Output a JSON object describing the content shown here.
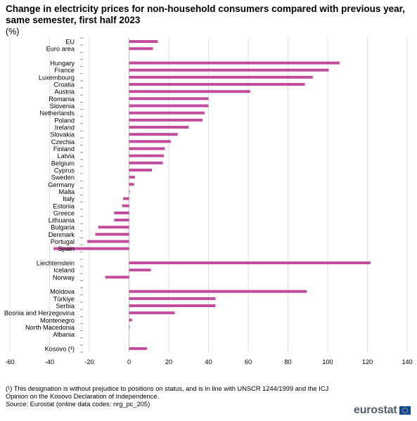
{
  "title": "Change in electricity prices for non-household consumers compared with previous year, same semester, first half 2023",
  "subtitle": "(%)",
  "footnote": "(¹) This designation is without prejudice to positions on status, and is in line with UNSCR 1244/1999 and the ICJ Opinion on the Kosovo Declaration of Independence.",
  "source_label": "Source:",
  "source_text": " Eurostat (online data codes: nrg_pc_205)",
  "logo_text": "eurostat",
  "colors": {
    "bar": "#c24c9c",
    "grid": "#dddddd",
    "flag_blue": "#0e47a1",
    "flag_star": "#ffd617"
  },
  "chart_data": {
    "type": "bar",
    "orientation": "horizontal",
    "title": "Change in electricity prices for non-household consumers compared with previous year, same semester, first half 2023",
    "unit": "(%)",
    "xlim": [
      -60,
      140
    ],
    "xticks": [
      -60,
      -40,
      -20,
      0,
      20,
      40,
      60,
      80,
      100,
      120,
      140
    ],
    "grid": true,
    "legend": "none",
    "categories": [
      "EU",
      "Euro area",
      "",
      "Hungary",
      "France",
      "Luxembourg",
      "Croatia",
      "Austria",
      "Romania",
      "Slovenia",
      "Netherlands",
      "Poland",
      "Ireland",
      "Slovakia",
      "Czechia",
      "Finland",
      "Latvia",
      "Belgium",
      "Cyprus",
      "Sweden",
      "Germany",
      "Malta",
      "Italy",
      "Estonia",
      "Greece",
      "Lithuania",
      "Bulgaria",
      "Denmark",
      "Portugal",
      "Spain",
      "",
      "Liechtenstein",
      "Iceland",
      "Norway",
      "",
      "Moldova",
      "Türkiye",
      "Serbia",
      "Bosnia and Herzegovina",
      "Montenegro",
      "North Macedonia",
      "Albania",
      "",
      "Kosovo (¹)"
    ],
    "values": [
      14.5,
      12,
      null,
      106,
      100.5,
      92.5,
      88.5,
      61,
      40,
      40,
      38,
      37,
      30,
      24.5,
      21,
      18,
      17.5,
      17,
      11.5,
      3,
      2.5,
      0.3,
      -3,
      -3.5,
      -7.5,
      -7.5,
      -15.5,
      -17,
      -21,
      -38,
      null,
      121.5,
      11,
      -12,
      null,
      89.5,
      43.5,
      43.5,
      23,
      1.5,
      0.3,
      null,
      null,
      9
    ]
  }
}
